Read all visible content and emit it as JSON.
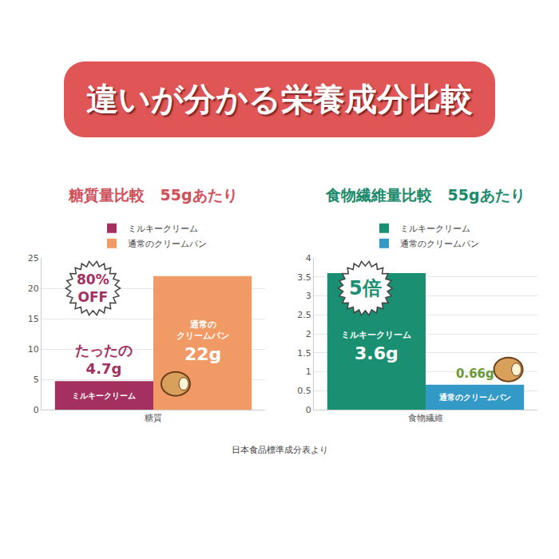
{
  "title": "違いが分かる栄養成分比較",
  "source": "日本食品標準成分表より",
  "chart_data": [
    {
      "type": "bar",
      "title": "糖質量比較　55gあたり",
      "categories": [
        "糖質"
      ],
      "series": [
        {
          "name": "ミルキークリーム",
          "color": "#a3305f",
          "values": [
            4.7
          ],
          "value_labels": [
            "4.7g"
          ]
        },
        {
          "name": "通常のクリームパン",
          "color": "#f29a66",
          "values": [
            22
          ],
          "value_labels": [
            "22g"
          ]
        }
      ],
      "ylim": [
        0,
        25
      ],
      "yticks": [
        0,
        5,
        10,
        15,
        20,
        25
      ],
      "grid": true,
      "legend": "top",
      "data_labels": true,
      "annotations": [
        "80% OFF",
        "たったの"
      ]
    },
    {
      "type": "bar",
      "title": "食物繊維量比較　55gあたり",
      "categories": [
        "食物繊維"
      ],
      "series": [
        {
          "name": "ミルキークリーム",
          "color": "#1b8f72",
          "values": [
            3.6
          ],
          "value_labels": [
            "3.6g"
          ]
        },
        {
          "name": "通常のクリームパン",
          "color": "#3399c6",
          "values": [
            0.66
          ],
          "value_labels": [
            "0.66g"
          ]
        }
      ],
      "ylim": [
        0,
        4
      ],
      "yticks": [
        0,
        0.5,
        1,
        1.5,
        2,
        2.5,
        3,
        3.5,
        4
      ],
      "grid": true,
      "legend": "top",
      "data_labels": true,
      "annotations": [
        "5倍"
      ]
    }
  ]
}
